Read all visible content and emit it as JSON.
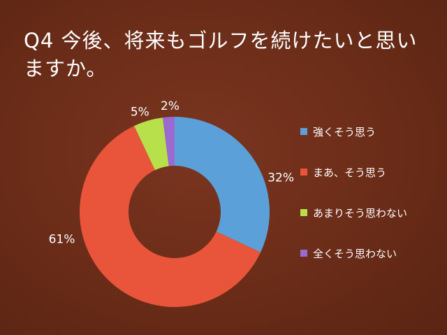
{
  "title": "Q4 今後、将来もゴルフを続けたいと思いますか。",
  "chart_data": {
    "type": "pie",
    "title": "Q4 今後、将来もゴルフを続けたいと思いますか。",
    "categories": [
      "強くそう思う",
      "まあ、そう思う",
      "あまりそう思わない",
      "全くそう思わない"
    ],
    "values": [
      32,
      61,
      5,
      2
    ],
    "labels": [
      "32%",
      "61%",
      "5%",
      "2%"
    ],
    "colors": [
      "#5ba0d8",
      "#e8553a",
      "#b8e04a",
      "#9a6ad0"
    ],
    "legend_position": "right"
  }
}
